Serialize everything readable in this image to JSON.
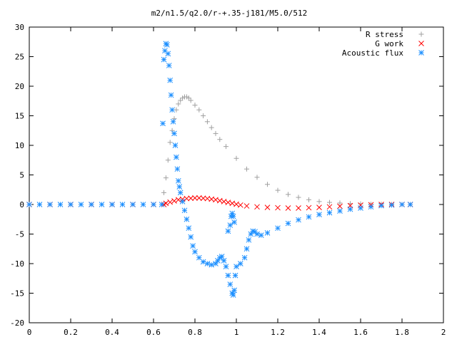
{
  "chart_data": {
    "type": "scatter",
    "title": "m2/n1.5/q2.0/r-+.35-j181/M5.0/512",
    "xlabel": "",
    "ylabel": "",
    "xlim": [
      0,
      2
    ],
    "ylim": [
      -20,
      30
    ],
    "x_ticks": [
      "0",
      "0.2",
      "0.4",
      "0.6",
      "0.8",
      "1",
      "1.2",
      "1.4",
      "1.6",
      "1.8",
      "2"
    ],
    "y_ticks": [
      "30",
      "25",
      "20",
      "15",
      "10",
      "5",
      "0",
      "-5",
      "-10",
      "-15",
      "-20"
    ],
    "grid": false,
    "legend_position": "top-right",
    "series": [
      {
        "name": "R stress",
        "marker": "plus",
        "color": "#a0a0a0",
        "points": [
          [
            0.0,
            0.0
          ],
          [
            0.1,
            0.0
          ],
          [
            0.2,
            0.0
          ],
          [
            0.3,
            0.0
          ],
          [
            0.4,
            0.0
          ],
          [
            0.5,
            0.0
          ],
          [
            0.6,
            0.0
          ],
          [
            0.64,
            0.0
          ],
          [
            0.65,
            2.0
          ],
          [
            0.66,
            4.5
          ],
          [
            0.67,
            7.5
          ],
          [
            0.68,
            10.5
          ],
          [
            0.69,
            12.5
          ],
          [
            0.7,
            14.5
          ],
          [
            0.71,
            16.0
          ],
          [
            0.72,
            17.0
          ],
          [
            0.73,
            17.6
          ],
          [
            0.74,
            18.0
          ],
          [
            0.75,
            18.2
          ],
          [
            0.76,
            18.2
          ],
          [
            0.77,
            18.0
          ],
          [
            0.78,
            17.6
          ],
          [
            0.8,
            16.8
          ],
          [
            0.82,
            16.0
          ],
          [
            0.84,
            15.0
          ],
          [
            0.86,
            14.0
          ],
          [
            0.88,
            13.0
          ],
          [
            0.9,
            12.0
          ],
          [
            0.92,
            11.0
          ],
          [
            0.95,
            9.8
          ],
          [
            1.0,
            7.8
          ],
          [
            1.05,
            6.0
          ],
          [
            1.1,
            4.6
          ],
          [
            1.15,
            3.4
          ],
          [
            1.2,
            2.4
          ],
          [
            1.25,
            1.7
          ],
          [
            1.3,
            1.2
          ],
          [
            1.35,
            0.8
          ],
          [
            1.4,
            0.5
          ],
          [
            1.45,
            0.35
          ],
          [
            1.5,
            0.25
          ],
          [
            1.55,
            0.15
          ],
          [
            1.6,
            0.1
          ],
          [
            1.65,
            0.05
          ],
          [
            1.7,
            0.05
          ],
          [
            1.75,
            0.0
          ],
          [
            1.8,
            0.0
          ],
          [
            1.84,
            0.0
          ]
        ]
      },
      {
        "name": "G work",
        "marker": "cross",
        "color": "#ff0000",
        "points": [
          [
            0.0,
            0.0
          ],
          [
            0.1,
            0.0
          ],
          [
            0.2,
            0.0
          ],
          [
            0.3,
            0.0
          ],
          [
            0.4,
            0.0
          ],
          [
            0.5,
            0.0
          ],
          [
            0.6,
            0.0
          ],
          [
            0.65,
            0.0
          ],
          [
            0.66,
            0.2
          ],
          [
            0.68,
            0.4
          ],
          [
            0.7,
            0.6
          ],
          [
            0.72,
            0.8
          ],
          [
            0.74,
            0.9
          ],
          [
            0.76,
            1.0
          ],
          [
            0.78,
            1.05
          ],
          [
            0.8,
            1.1
          ],
          [
            0.82,
            1.1
          ],
          [
            0.84,
            1.05
          ],
          [
            0.86,
            1.0
          ],
          [
            0.88,
            0.9
          ],
          [
            0.9,
            0.8
          ],
          [
            0.92,
            0.65
          ],
          [
            0.94,
            0.5
          ],
          [
            0.96,
            0.35
          ],
          [
            0.98,
            0.2
          ],
          [
            1.0,
            0.05
          ],
          [
            1.02,
            -0.1
          ],
          [
            1.05,
            -0.25
          ],
          [
            1.1,
            -0.4
          ],
          [
            1.15,
            -0.5
          ],
          [
            1.2,
            -0.55
          ],
          [
            1.25,
            -0.6
          ],
          [
            1.3,
            -0.6
          ],
          [
            1.35,
            -0.55
          ],
          [
            1.4,
            -0.5
          ],
          [
            1.45,
            -0.4
          ],
          [
            1.5,
            -0.3
          ],
          [
            1.55,
            -0.2
          ],
          [
            1.6,
            -0.1
          ],
          [
            1.65,
            -0.05
          ],
          [
            1.7,
            0.0
          ],
          [
            1.75,
            0.0
          ],
          [
            1.8,
            0.0
          ],
          [
            1.84,
            0.0
          ]
        ]
      },
      {
        "name": "Acoustic flux",
        "marker": "star",
        "color": "#1e90ff",
        "points": [
          [
            0.0,
            0.0
          ],
          [
            0.05,
            0.0
          ],
          [
            0.1,
            0.0
          ],
          [
            0.15,
            0.0
          ],
          [
            0.2,
            0.0
          ],
          [
            0.25,
            0.0
          ],
          [
            0.3,
            0.0
          ],
          [
            0.35,
            0.0
          ],
          [
            0.4,
            0.0
          ],
          [
            0.45,
            0.0
          ],
          [
            0.5,
            0.0
          ],
          [
            0.55,
            0.0
          ],
          [
            0.6,
            0.0
          ],
          [
            0.64,
            0.0
          ],
          [
            0.645,
            13.7
          ],
          [
            0.65,
            24.5
          ],
          [
            0.655,
            26.0
          ],
          [
            0.66,
            27.2
          ],
          [
            0.665,
            27.0
          ],
          [
            0.67,
            25.5
          ],
          [
            0.675,
            23.5
          ],
          [
            0.68,
            21.0
          ],
          [
            0.685,
            18.5
          ],
          [
            0.69,
            16.0
          ],
          [
            0.695,
            14.0
          ],
          [
            0.7,
            12.0
          ],
          [
            0.705,
            10.0
          ],
          [
            0.71,
            8.0
          ],
          [
            0.715,
            6.0
          ],
          [
            0.72,
            4.0
          ],
          [
            0.725,
            3.0
          ],
          [
            0.73,
            2.0
          ],
          [
            0.74,
            0.5
          ],
          [
            0.75,
            -1.0
          ],
          [
            0.76,
            -2.5
          ],
          [
            0.77,
            -4.0
          ],
          [
            0.78,
            -5.5
          ],
          [
            0.79,
            -7.0
          ],
          [
            0.8,
            -8.0
          ],
          [
            0.82,
            -9.0
          ],
          [
            0.84,
            -9.7
          ],
          [
            0.86,
            -10.0
          ],
          [
            0.88,
            -10.2
          ],
          [
            0.9,
            -10.0
          ],
          [
            0.91,
            -9.5
          ],
          [
            0.92,
            -9.0
          ],
          [
            0.93,
            -8.8
          ],
          [
            0.94,
            -9.5
          ],
          [
            0.95,
            -10.5
          ],
          [
            0.96,
            -12.0
          ],
          [
            0.97,
            -13.5
          ],
          [
            0.98,
            -15.0
          ],
          [
            0.985,
            -15.3
          ],
          [
            0.99,
            -14.5
          ],
          [
            0.995,
            -12.0
          ],
          [
            1.0,
            -10.5
          ],
          [
            0.97,
            -3.5
          ],
          [
            0.975,
            -2.0
          ],
          [
            0.98,
            -1.5
          ],
          [
            0.985,
            -2.0
          ],
          [
            0.99,
            -3.0
          ],
          [
            0.96,
            -4.5
          ],
          [
            1.02,
            -10.0
          ],
          [
            1.04,
            -9.0
          ],
          [
            1.05,
            -7.5
          ],
          [
            1.06,
            -6.0
          ],
          [
            1.07,
            -5.0
          ],
          [
            1.08,
            -4.5
          ],
          [
            1.09,
            -4.6
          ],
          [
            1.1,
            -5.0
          ],
          [
            1.12,
            -5.2
          ],
          [
            1.15,
            -4.8
          ],
          [
            1.2,
            -4.0
          ],
          [
            1.25,
            -3.2
          ],
          [
            1.3,
            -2.6
          ],
          [
            1.35,
            -2.1
          ],
          [
            1.4,
            -1.7
          ],
          [
            1.45,
            -1.4
          ],
          [
            1.5,
            -1.1
          ],
          [
            1.55,
            -0.8
          ],
          [
            1.6,
            -0.6
          ],
          [
            1.65,
            -0.4
          ],
          [
            1.7,
            -0.2
          ],
          [
            1.75,
            -0.1
          ],
          [
            1.8,
            0.0
          ],
          [
            1.84,
            0.0
          ]
        ]
      }
    ]
  }
}
